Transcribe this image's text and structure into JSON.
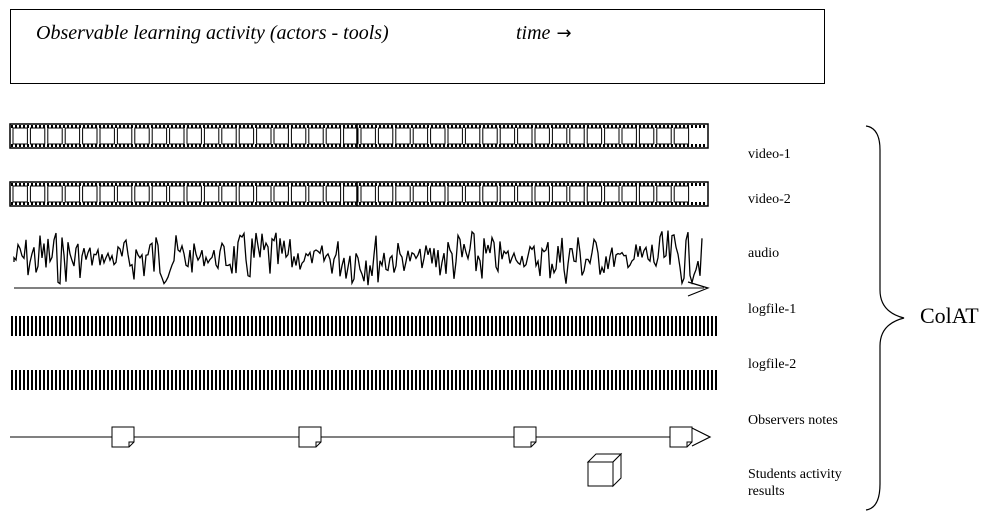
{
  "header": {
    "title": "Observable learning activity (actors -  tools)",
    "time_label": "time",
    "arrow": "→"
  },
  "tracks": [
    {
      "id": "video-1",
      "label": "video-1",
      "kind": "film"
    },
    {
      "id": "video-2",
      "label": "video-2",
      "kind": "film"
    },
    {
      "id": "audio",
      "label": "audio",
      "kind": "waveform"
    },
    {
      "id": "logfile-1",
      "label": "logfile-1",
      "kind": "barcode"
    },
    {
      "id": "logfile-2",
      "label": "logfile-2",
      "kind": "barcode"
    },
    {
      "id": "observers-notes",
      "label": "Observers notes",
      "kind": "timeline-notes"
    },
    {
      "id": "students-activity-results",
      "label_line1": "Students activity",
      "label_line2": "results",
      "kind": "cube"
    }
  ],
  "group_label": "ColAT"
}
